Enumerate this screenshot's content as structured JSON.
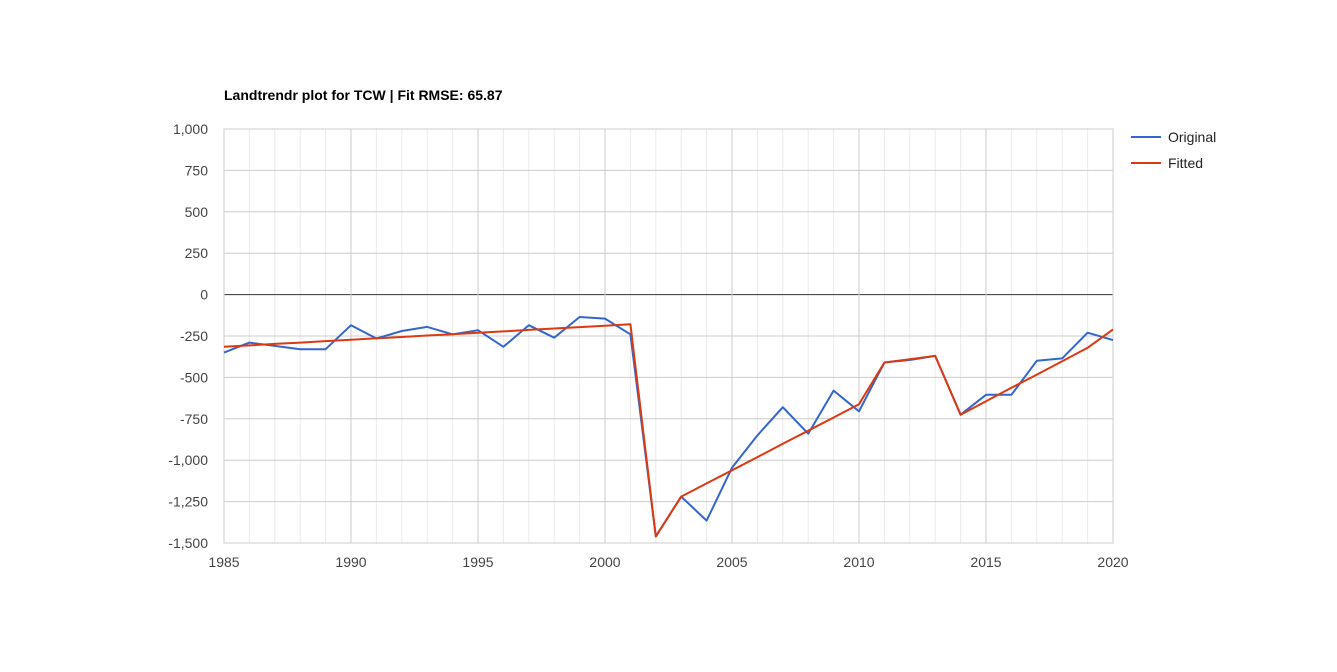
{
  "chart_data": {
    "type": "line",
    "title": "Landtrendr plot for TCW | Fit RMSE: 65.87",
    "xlabel": "",
    "ylabel": "",
    "xlim": [
      1985,
      2020
    ],
    "ylim": [
      -1500,
      1000
    ],
    "x_ticks": [
      1985,
      1990,
      1995,
      2000,
      2005,
      2010,
      2015,
      2020
    ],
    "x_tick_labels": [
      "1985",
      "1990",
      "1995",
      "2000",
      "2005",
      "2010",
      "2015",
      "2020"
    ],
    "y_ticks": [
      1000,
      750,
      500,
      250,
      0,
      -250,
      -500,
      -750,
      -1000,
      -1250,
      -1500
    ],
    "y_tick_labels": [
      "1,000",
      "750",
      "500",
      "250",
      "0",
      "-250",
      "-500",
      "-750",
      "-1,000",
      "-1,250",
      "-1,500"
    ],
    "grid": true,
    "legend_position": "right",
    "x": [
      1985,
      1986,
      1987,
      1988,
      1989,
      1990,
      1991,
      1992,
      1993,
      1994,
      1995,
      1996,
      1997,
      1998,
      1999,
      2000,
      2001,
      2002,
      2003,
      2004,
      2005,
      2006,
      2007,
      2008,
      2009,
      2010,
      2011,
      2012,
      2013,
      2014,
      2015,
      2016,
      2017,
      2018,
      2019,
      2020
    ],
    "series": [
      {
        "name": "Original",
        "color": "#3366cc",
        "values": [
          -350,
          -290,
          -310,
          -330,
          -330,
          -185,
          -265,
          -220,
          -195,
          -240,
          -215,
          -315,
          -185,
          -260,
          -135,
          -145,
          -240,
          -1460,
          -1220,
          -1365,
          -1045,
          -850,
          -680,
          -840,
          -580,
          -705,
          -410,
          -395,
          -370,
          -725,
          -605,
          -605,
          -400,
          -385,
          -230,
          -275
        ]
      },
      {
        "name": "Fitted",
        "color": "#dc3912",
        "values": [
          -315,
          -307,
          -298,
          -290,
          -281,
          -273,
          -264,
          -256,
          -247,
          -239,
          -230,
          -222,
          -213,
          -205,
          -196,
          -188,
          -179,
          -1460,
          -1220,
          -1140,
          -1061,
          -981,
          -901,
          -822,
          -742,
          -662,
          -410,
          -390,
          -370,
          -725,
          -644,
          -563,
          -483,
          -402,
          -321,
          -210
        ]
      }
    ]
  }
}
